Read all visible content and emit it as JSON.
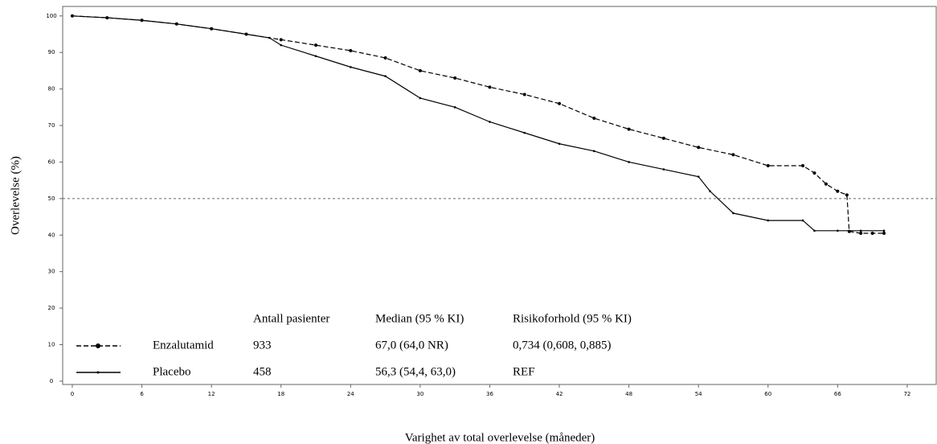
{
  "chart_data": {
    "type": "line",
    "y_label": "Overlevelse (%)",
    "x_label": "Varighet av total overlevelse (måneder)",
    "xlim": [
      -0.83,
      74.5
    ],
    "ylim": [
      -0.9,
      102.6
    ],
    "xticks": [
      0,
      6,
      12,
      18,
      24,
      30,
      36,
      42,
      48,
      54,
      60,
      66,
      72
    ],
    "yticks": [
      0,
      10,
      20,
      30,
      40,
      50,
      60,
      70,
      80,
      90,
      100
    ],
    "reference_line": 50,
    "series": [
      {
        "name": "Enzalutamid",
        "color": "#000000",
        "dashed": true,
        "x": [
          0,
          3,
          6,
          9,
          12,
          15,
          18,
          21,
          24,
          27,
          30,
          33,
          36,
          39,
          42,
          45,
          48,
          51,
          54,
          57,
          60,
          63,
          64,
          65,
          66,
          66.8,
          67,
          68,
          69,
          70
        ],
        "values": [
          100,
          99.5,
          98.8,
          97.8,
          96.5,
          95,
          93.5,
          92,
          90.5,
          88.5,
          85,
          83,
          80.5,
          78.5,
          76,
          72,
          69,
          66.5,
          64,
          62,
          59,
          59,
          57,
          54,
          52,
          51,
          41,
          40.5,
          40.5,
          40.5
        ]
      },
      {
        "name": "Placebo",
        "color": "#000000",
        "dashed": false,
        "x": [
          0,
          3,
          6,
          9,
          12,
          15,
          17,
          18,
          21,
          24,
          27,
          30,
          33,
          36,
          39,
          42,
          45,
          48,
          51,
          54,
          55,
          57,
          60,
          63,
          64,
          66,
          68,
          70
        ],
        "values": [
          100,
          99.5,
          98.8,
          97.8,
          96.5,
          95,
          94,
          92,
          89,
          86,
          83.5,
          77.5,
          75,
          71,
          68,
          65,
          63,
          60,
          58,
          56,
          52,
          46,
          44,
          44,
          41.2,
          41.2,
          41.2,
          41.2
        ]
      }
    ],
    "table": {
      "header": [
        "Antall pasienter",
        "Median (95 % KI)",
        "Risikoforhold (95 % KI)"
      ],
      "rows": [
        {
          "name": "Enzalutamid",
          "n": 933,
          "median": "67,0 (64,0 NR)",
          "hr": "0,734 (0,608, 0,885)"
        },
        {
          "name": "Placebo",
          "n": 458,
          "median": "56,3 (54,4, 63,0)",
          "hr": "REF"
        }
      ]
    }
  }
}
